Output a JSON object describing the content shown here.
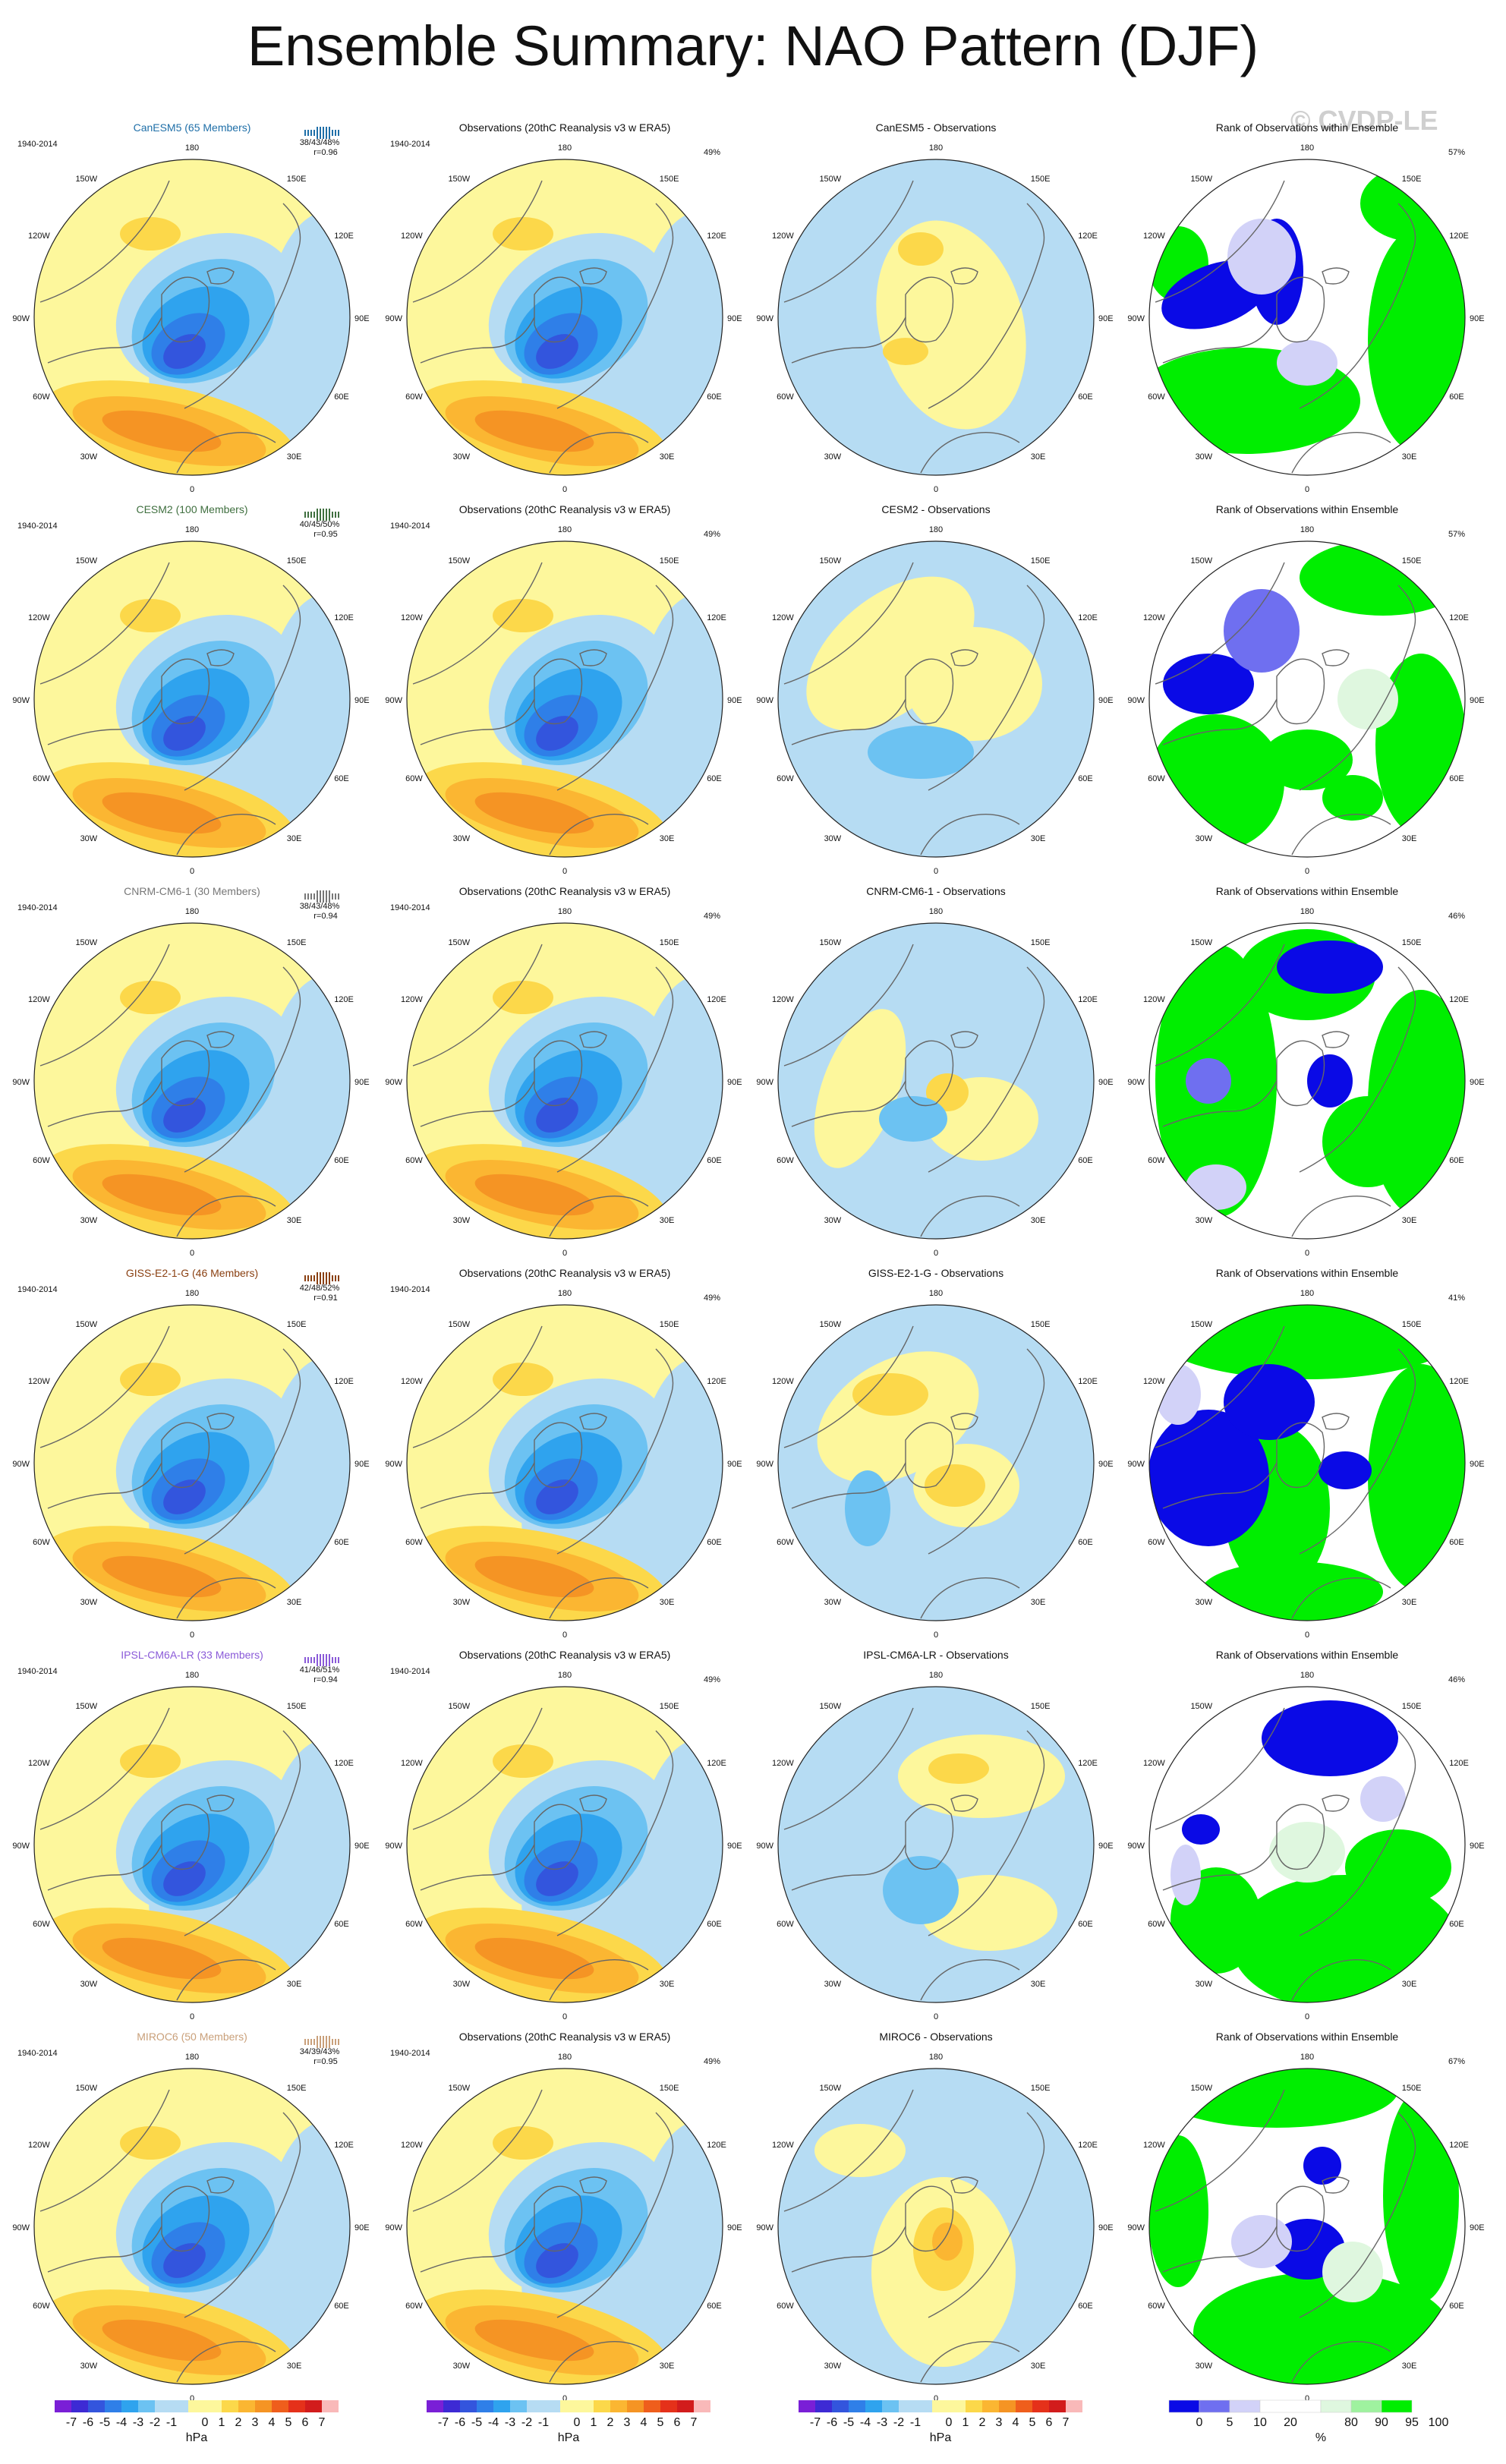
{
  "title": "Ensemble Summary: NAO Pattern (DJF)",
  "watermark": "© CVDP-LE",
  "period": "1940-2014",
  "obs_title": "Observations (20thC Reanalysis v3 w ERA5)",
  "obs_pct": "49%",
  "rank_title": "Rank of Observations within Ensemble",
  "lon_labels": {
    "top": "180",
    "bottom": "0",
    "l150": "150W",
    "r150": "150E",
    "l120": "120W",
    "r120": "120E",
    "l90": "90W",
    "r90": "90E",
    "l60": "60W",
    "r60": "60E",
    "l30": "30W",
    "r30": "30E"
  },
  "colors": {
    "neg7": "#7a1fd6",
    "neg6": "#3d2ad4",
    "neg5": "#3355dd",
    "neg4": "#2f7fe8",
    "neg3": "#2fa3ee",
    "neg2": "#6cc2f2",
    "neg1": "#b6dcf3",
    "pos1": "#fdf79c",
    "pos2": "#fcd84a",
    "pos3": "#fbb632",
    "pos4": "#f59424",
    "pos5": "#ef5e1c",
    "pos6": "#e5311a",
    "pos7": "#d21c1c",
    "pos8": "#f9b9b9",
    "rank_blue": "#0a0ae6",
    "rank_blue2": "#6f6ff0",
    "rank_blue3": "#d2d2f8",
    "rank_white": "#ffffff",
    "rank_green3": "#dff7df",
    "rank_green2": "#9ff29f",
    "rank_green": "#00ee00",
    "coast": "#666666"
  },
  "models": [
    {
      "name": "CanESM5 (65 Members)",
      "short": "CanESM5",
      "diff_title": "CanESM5 - Observations",
      "color": "#1f6fa8",
      "stats": "38/43/48%",
      "r": "r=0.96",
      "rank_pct": "57%"
    },
    {
      "name": "CESM2 (100 Members)",
      "short": "CESM2",
      "diff_title": "CESM2 - Observations",
      "color": "#3f6f3f",
      "stats": "40/45/50%",
      "r": "r=0.95",
      "rank_pct": "57%"
    },
    {
      "name": "CNRM-CM6-1 (30 Members)",
      "short": "CNRM-CM6-1",
      "diff_title": "CNRM-CM6-1 - Observations",
      "color": "#777777",
      "stats": "38/43/48%",
      "r": "r=0.94",
      "rank_pct": "46%"
    },
    {
      "name": "GISS-E2-1-G (46 Members)",
      "short": "GISS-E2-1-G",
      "diff_title": "GISS-E2-1-G - Observations",
      "color": "#8a4012",
      "stats": "42/48/52%",
      "r": "r=0.91",
      "rank_pct": "41%"
    },
    {
      "name": "IPSL-CM6A-LR (33 Members)",
      "short": "IPSL-CM6A-LR",
      "diff_title": "IPSL-CM6A-LR - Observations",
      "color": "#8a5ad8",
      "stats": "41/46/51%",
      "r": "r=0.94",
      "rank_pct": "46%"
    },
    {
      "name": "MIROC6 (50 Members)",
      "short": "MIROC6",
      "diff_title": "MIROC6 - Observations",
      "color": "#c9a07a",
      "stats": "34/39/43%",
      "r": "r=0.95",
      "rank_pct": "67%"
    }
  ],
  "colorbar_hpa": {
    "labels": [
      "-7",
      "-6",
      "-5",
      "-4",
      "-3",
      "-2",
      "-1",
      "0",
      "1",
      "2",
      "3",
      "4",
      "5",
      "6",
      "7"
    ],
    "unit": "hPa"
  },
  "colorbar_rank": {
    "labels": [
      "0",
      "5",
      "10",
      "20",
      "80",
      "90",
      "95",
      "100"
    ],
    "unit": "%"
  }
}
